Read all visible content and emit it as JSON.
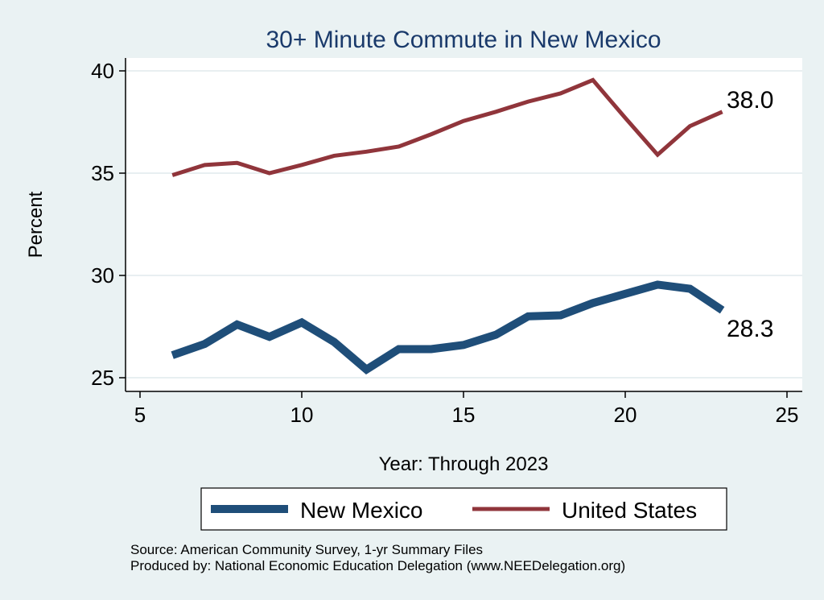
{
  "chart_data": {
    "type": "line",
    "title": "30+ Minute Commute in New Mexico",
    "xlabel": "Year: Through 2023",
    "ylabel": "Percent",
    "xlim": [
      5,
      25
    ],
    "ylim": [
      25,
      40
    ],
    "xticks": [
      5,
      10,
      15,
      20,
      25
    ],
    "yticks": [
      25,
      30,
      35,
      40
    ],
    "grid": true,
    "legend_position": "bottom",
    "x": [
      6,
      7,
      8,
      9,
      10,
      11,
      12,
      13,
      14,
      15,
      16,
      17,
      18,
      19,
      20,
      21,
      22,
      23
    ],
    "series": [
      {
        "name": "New Mexico",
        "color": "#1f4e79",
        "values": [
          26.1,
          26.65,
          27.6,
          27.0,
          27.7,
          26.75,
          25.4,
          26.4,
          26.4,
          26.6,
          27.1,
          28.0,
          28.05,
          28.65,
          29.1,
          29.55,
          29.35,
          28.3
        ],
        "end_label": "28.3"
      },
      {
        "name": "United States",
        "color": "#90353b",
        "values": [
          34.9,
          35.4,
          35.5,
          35.0,
          35.4,
          35.85,
          36.05,
          36.3,
          36.9,
          37.55,
          38.0,
          38.5,
          38.9,
          39.55,
          37.7,
          35.9,
          37.3,
          38.0
        ],
        "end_label": "38.0"
      }
    ],
    "notes": [
      "Source: American Community Survey, 1-yr Summary Files",
      "Produced by: National Economic Education Delegation (www.NEEDelegation.org)"
    ]
  }
}
